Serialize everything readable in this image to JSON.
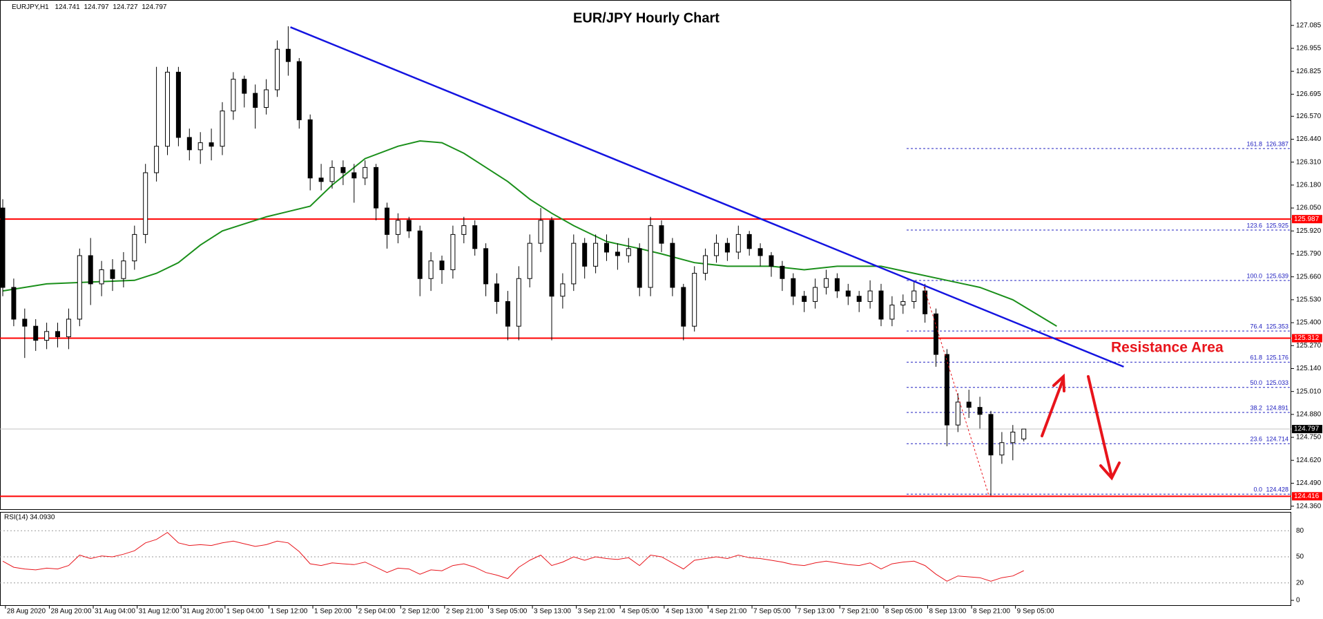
{
  "chart_data": {
    "type": "candlestick",
    "title": "EUR/JPY Hourly Chart",
    "symbol": "EURJPY,H1",
    "annotation": "Resistance Area",
    "ylim": [
      124.343,
      127.229
    ],
    "yticks": [
      127.085,
      126.955,
      126.825,
      126.695,
      {
        "value": 126.57,
        "label": "126.570"
      },
      {
        "value": 126.44,
        "label": "126.440"
      },
      {
        "value": 126.31,
        "label": "126.310"
      },
      {
        "value": 126.18,
        "label": "126.180"
      },
      {
        "value": 126.05,
        "label": "126.050"
      },
      {
        "value": 125.92,
        "label": "125.920"
      },
      {
        "value": 125.79,
        "label": "125.790"
      },
      {
        "value": 125.66,
        "label": "125.660"
      },
      {
        "value": 125.53,
        "label": "125.530"
      },
      {
        "value": 125.4,
        "label": "125.400"
      },
      {
        "value": 125.27,
        "label": "125.270"
      },
      {
        "value": 125.14,
        "label": "125.140"
      },
      {
        "value": 125.01,
        "label": "125.010"
      },
      {
        "value": 124.88,
        "label": "124.880"
      },
      {
        "value": 124.75,
        "label": "124.750"
      },
      {
        "value": 124.62,
        "label": "124.620"
      },
      {
        "value": 124.49,
        "label": "124.490"
      },
      {
        "value": 124.36,
        "label": "124.360"
      }
    ],
    "time_labels": [
      "28 Aug 2020",
      "28 Aug 20:00",
      "31 Aug 04:00",
      "31 Aug 12:00",
      "31 Aug 20:00",
      "1 Sep 04:00",
      "1 Sep 12:00",
      "1 Sep 20:00",
      "2 Sep 04:00",
      "2 Sep 12:00",
      "2 Sep 21:00",
      "3 Sep 05:00",
      "3 Sep 13:00",
      "3 Sep 21:00",
      "4 Sep 05:00",
      "4 Sep 13:00",
      "4 Sep 21:00",
      "7 Sep 05:00",
      "7 Sep 13:00",
      "7 Sep 21:00",
      "8 Sep 05:00",
      "8 Sep 13:00",
      "8 Sep 21:00",
      "9 Sep 05:00"
    ],
    "up_color": "#ffffff",
    "down_color": "#000000",
    "candles": [
      [
        126.05,
        126.1,
        125.55,
        125.6
      ],
      [
        125.6,
        125.65,
        125.38,
        125.42
      ],
      [
        125.42,
        125.48,
        125.2,
        125.38
      ],
      [
        125.38,
        125.42,
        125.24,
        125.3
      ],
      [
        125.3,
        125.4,
        125.25,
        125.35
      ],
      [
        125.35,
        125.4,
        125.26,
        125.32
      ],
      [
        125.32,
        125.48,
        125.25,
        125.42
      ],
      [
        125.42,
        125.82,
        125.38,
        125.78
      ],
      [
        125.78,
        125.88,
        125.5,
        125.62
      ],
      [
        125.62,
        125.75,
        125.55,
        125.7
      ],
      [
        125.7,
        125.76,
        125.58,
        125.65
      ],
      [
        125.65,
        125.8,
        125.6,
        125.75
      ],
      [
        125.75,
        125.95,
        125.7,
        125.9
      ],
      [
        125.9,
        126.3,
        125.85,
        126.25
      ],
      [
        126.25,
        126.85,
        126.2,
        126.4
      ],
      [
        126.4,
        126.85,
        126.35,
        126.82
      ],
      [
        126.82,
        126.85,
        126.4,
        126.45
      ],
      [
        126.45,
        126.5,
        126.32,
        126.38
      ],
      [
        126.38,
        126.48,
        126.3,
        126.42
      ],
      [
        126.42,
        126.5,
        126.32,
        126.4
      ],
      [
        126.4,
        126.65,
        126.35,
        126.6
      ],
      [
        126.6,
        126.82,
        126.55,
        126.78
      ],
      [
        126.78,
        126.8,
        126.62,
        126.7
      ],
      [
        126.7,
        126.75,
        126.5,
        126.62
      ],
      [
        126.62,
        126.78,
        126.58,
        126.72
      ],
      [
        126.72,
        127.0,
        126.68,
        126.95
      ],
      [
        126.95,
        127.08,
        126.8,
        126.88
      ],
      [
        126.88,
        126.9,
        126.5,
        126.55
      ],
      [
        126.55,
        126.58,
        126.15,
        126.22
      ],
      [
        126.22,
        126.3,
        126.15,
        126.2
      ],
      [
        126.2,
        126.32,
        126.16,
        126.28
      ],
      [
        126.28,
        126.32,
        126.18,
        126.25
      ],
      [
        126.25,
        126.3,
        126.08,
        126.22
      ],
      [
        126.22,
        126.32,
        126.18,
        126.28
      ],
      [
        126.28,
        126.3,
        125.98,
        126.05
      ],
      [
        126.05,
        126.08,
        125.82,
        125.9
      ],
      [
        125.9,
        126.02,
        125.85,
        125.98
      ],
      [
        125.98,
        126.0,
        125.88,
        125.92
      ],
      [
        125.92,
        125.95,
        125.55,
        125.65
      ],
      [
        125.65,
        125.8,
        125.58,
        125.75
      ],
      [
        125.75,
        125.78,
        125.62,
        125.7
      ],
      [
        125.7,
        125.95,
        125.65,
        125.9
      ],
      [
        125.9,
        126.0,
        125.85,
        125.95
      ],
      [
        125.95,
        125.98,
        125.78,
        125.82
      ],
      [
        125.82,
        125.85,
        125.55,
        125.62
      ],
      [
        125.62,
        125.68,
        125.45,
        125.52
      ],
      [
        125.52,
        125.58,
        125.3,
        125.38
      ],
      [
        125.38,
        125.72,
        125.3,
        125.65
      ],
      [
        125.65,
        125.9,
        125.6,
        125.85
      ],
      [
        125.85,
        126.05,
        125.8,
        125.98
      ],
      [
        125.98,
        126.0,
        125.3,
        125.55
      ],
      [
        125.55,
        125.68,
        125.48,
        125.62
      ],
      [
        125.62,
        125.9,
        125.58,
        125.85
      ],
      [
        125.85,
        125.88,
        125.65,
        125.72
      ],
      [
        125.72,
        125.9,
        125.68,
        125.85
      ],
      [
        125.85,
        125.9,
        125.75,
        125.8
      ],
      [
        125.8,
        125.85,
        125.7,
        125.78
      ],
      [
        125.78,
        125.88,
        125.74,
        125.82
      ],
      [
        125.82,
        125.85,
        125.55,
        125.6
      ],
      [
        125.6,
        126.0,
        125.55,
        125.95
      ],
      [
        125.95,
        125.98,
        125.8,
        125.85
      ],
      [
        125.85,
        125.88,
        125.55,
        125.6
      ],
      [
        125.6,
        125.62,
        125.3,
        125.38
      ],
      [
        125.38,
        125.72,
        125.35,
        125.68
      ],
      [
        125.68,
        125.82,
        125.64,
        125.78
      ],
      [
        125.78,
        125.9,
        125.74,
        125.85
      ],
      [
        125.85,
        125.88,
        125.75,
        125.8
      ],
      [
        125.8,
        125.95,
        125.76,
        125.9
      ],
      [
        125.9,
        125.92,
        125.78,
        125.82
      ],
      [
        125.82,
        125.85,
        125.72,
        125.78
      ],
      [
        125.78,
        125.8,
        125.66,
        125.72
      ],
      [
        125.72,
        125.75,
        125.58,
        125.65
      ],
      [
        125.65,
        125.68,
        125.5,
        125.55
      ],
      [
        125.55,
        125.58,
        125.46,
        125.52
      ],
      [
        125.52,
        125.65,
        125.48,
        125.6
      ],
      [
        125.6,
        125.7,
        125.56,
        125.65
      ],
      [
        125.65,
        125.68,
        125.54,
        125.58
      ],
      [
        125.58,
        125.62,
        125.5,
        125.55
      ],
      [
        125.55,
        125.58,
        125.46,
        125.52
      ],
      [
        125.52,
        125.64,
        125.48,
        125.58
      ],
      [
        125.58,
        125.62,
        125.38,
        125.42
      ],
      [
        125.42,
        125.55,
        125.38,
        125.5
      ],
      [
        125.5,
        125.56,
        125.45,
        125.52
      ],
      [
        125.52,
        125.64,
        125.48,
        125.58
      ],
      [
        125.58,
        125.62,
        125.4,
        125.45
      ],
      [
        125.45,
        125.48,
        125.15,
        125.22
      ],
      [
        125.22,
        125.25,
        124.7,
        124.82
      ],
      [
        124.82,
        125.0,
        124.78,
        124.95
      ],
      [
        124.95,
        125.02,
        124.86,
        124.92
      ],
      [
        124.92,
        124.98,
        124.8,
        124.88
      ],
      [
        124.88,
        124.9,
        124.42,
        124.65
      ],
      [
        124.65,
        124.78,
        124.6,
        124.72
      ],
      [
        124.72,
        124.82,
        124.62,
        124.78
      ],
      [
        124.741,
        124.797,
        124.727,
        124.797
      ]
    ],
    "ma": {
      "color": "#1a8f1a",
      "x": [
        0,
        4,
        8,
        12,
        14,
        16,
        18,
        20,
        22,
        24,
        26,
        28,
        30,
        33,
        36,
        38,
        40,
        42,
        44,
        46,
        48,
        50,
        52,
        55,
        58,
        60,
        63,
        66,
        70,
        73,
        76,
        80,
        83,
        86,
        89,
        92,
        96
      ],
      "values": [
        125.58,
        125.62,
        125.63,
        125.64,
        125.68,
        125.74,
        125.84,
        125.92,
        125.96,
        126.0,
        126.03,
        126.06,
        126.18,
        126.33,
        126.4,
        126.43,
        126.42,
        126.36,
        126.28,
        126.2,
        126.1,
        126.02,
        125.95,
        125.86,
        125.82,
        125.79,
        125.74,
        125.72,
        125.72,
        125.7,
        125.72,
        125.72,
        125.68,
        125.64,
        125.6,
        125.53,
        125.38
      ]
    },
    "trendline": {
      "color": "#1414e0",
      "x": [
        26.2,
        102.1
      ],
      "values": [
        127.075,
        125.15
      ]
    },
    "levels": [
      {
        "price": 125.987,
        "color": "#ff0000"
      },
      {
        "price": 125.312,
        "color": "#ff0000"
      },
      {
        "price": 124.416,
        "color": "#ff0000"
      }
    ],
    "current_color": "#000000",
    "fib": [
      {
        "level": "161.8",
        "price": 126.387
      },
      {
        "level": "123.6",
        "price": 125.925
      },
      {
        "level": "100.0",
        "price": 125.639
      },
      {
        "level": "76.4",
        "price": 125.353
      },
      {
        "level": "61.8",
        "price": 125.176
      },
      {
        "level": "50.0",
        "price": 125.033
      },
      {
        "level": "38.2",
        "price": 124.891
      },
      {
        "level": "23.6",
        "price": 124.714
      },
      {
        "level": "0.0",
        "price": 124.428
      }
    ],
    "rsi": {
      "label": "RSI(14) 34.0930",
      "color": "#e8141b",
      "ylim": [
        0,
        100
      ],
      "yticks": [
        80,
        50,
        20,
        0
      ],
      "values": [
        45,
        38,
        36,
        35,
        37,
        36,
        40,
        52,
        48,
        51,
        50,
        53,
        57,
        66,
        70,
        78,
        66,
        63,
        64,
        63,
        66,
        68,
        65,
        62,
        64,
        68,
        66,
        56,
        42,
        40,
        43,
        42,
        41,
        44,
        38,
        32,
        37,
        36,
        30,
        35,
        34,
        40,
        42,
        38,
        32,
        29,
        25,
        38,
        46,
        52,
        40,
        44,
        50,
        46,
        50,
        48,
        47,
        49,
        40,
        52,
        50,
        43,
        36,
        46,
        48,
        50,
        48,
        52,
        49,
        48,
        46,
        44,
        41,
        40,
        43,
        45,
        43,
        41,
        40,
        43,
        36,
        42,
        44,
        45,
        40,
        30,
        22,
        28,
        27,
        26,
        22,
        26,
        28,
        34.093
      ]
    }
  }
}
